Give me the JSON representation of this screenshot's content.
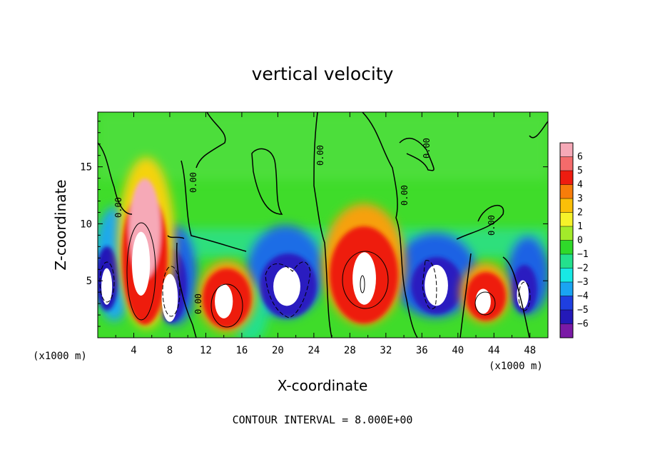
{
  "chart_data": {
    "type": "heatmap",
    "title": "vertical velocity",
    "xlabel": "X-coordinate",
    "ylabel": "Z-coordinate",
    "x_unit": "(x1000 m)",
    "z_unit": "(x1000 m)",
    "xlim": [
      0,
      50
    ],
    "ylim": [
      0,
      19.8
    ],
    "x_ticks": [
      "4",
      "8",
      "12",
      "16",
      "20",
      "24",
      "28",
      "32",
      "36",
      "40",
      "44",
      "48"
    ],
    "y_ticks": [
      "5",
      "10",
      "15"
    ],
    "colorbar": {
      "ticks": [
        "6",
        "5",
        "4",
        "3",
        "2",
        "1",
        "0",
        "−1",
        "−2",
        "−3",
        "−4",
        "−5",
        "−6"
      ],
      "colors": [
        "#f6a9b7",
        "#f46b6b",
        "#ee1c10",
        "#f77d0a",
        "#fbbf08",
        "#f6f22a",
        "#a3ea2a",
        "#2fd92a",
        "#24e08d",
        "#18e8e4",
        "#1aa4f2",
        "#1f3fe0",
        "#2419b8",
        "#7a1aa6"
      ],
      "range": [
        -6,
        6
      ]
    },
    "cells": [
      {
        "x": 4.8,
        "z": 6.5,
        "w": 2.0,
        "h": 5.6,
        "v": 6
      },
      {
        "x": 8.0,
        "z": 3.5,
        "w": 1.8,
        "h": 4.2,
        "v": -5
      },
      {
        "x": 1.0,
        "z": 4.5,
        "w": 1.2,
        "h": 3.2,
        "v": -5
      },
      {
        "x": 14.0,
        "z": 3.2,
        "w": 2.0,
        "h": 3.0,
        "v": 6
      },
      {
        "x": 21.0,
        "z": 4.5,
        "w": 3.0,
        "h": 3.4,
        "v": -5
      },
      {
        "x": 29.6,
        "z": 5.2,
        "w": 2.6,
        "h": 4.6,
        "v": 6
      },
      {
        "x": 37.6,
        "z": 4.6,
        "w": 2.6,
        "h": 3.6,
        "v": -5
      },
      {
        "x": 42.8,
        "z": 3.2,
        "w": 1.7,
        "h": 2.2,
        "v": 6
      },
      {
        "x": 47.2,
        "z": 3.8,
        "w": 1.3,
        "h": 2.5,
        "v": -5
      }
    ],
    "contour_labels": [
      "0.00",
      "0.00",
      "0.00",
      "0.00",
      "0.00",
      "0.00",
      "0.00"
    ],
    "grid": false,
    "legend": "colorbar-right"
  },
  "footer": "CONTOUR INTERVAL = 8.000E+00"
}
